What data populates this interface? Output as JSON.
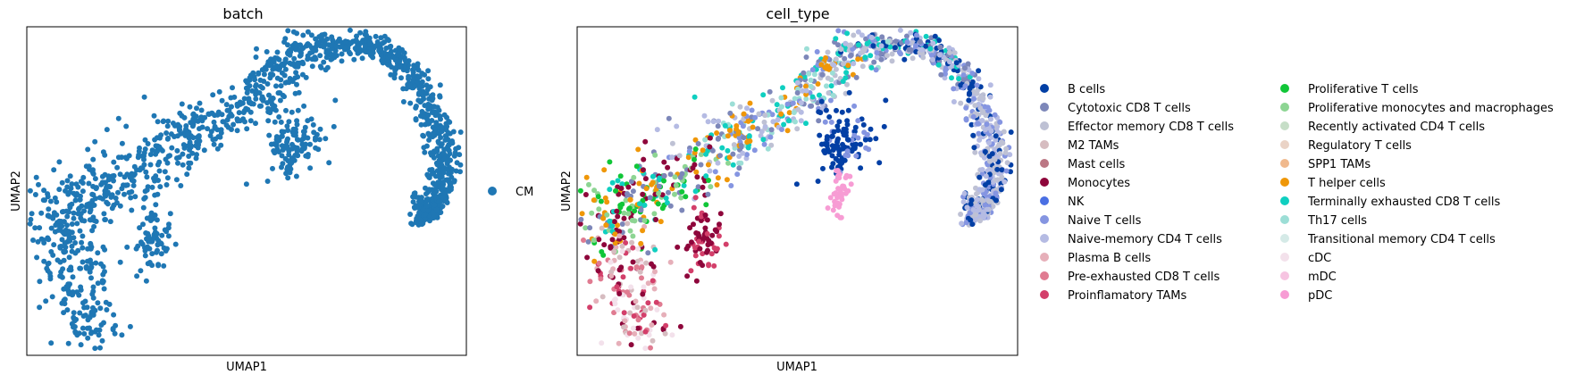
{
  "chart_data": [
    {
      "type": "scatter",
      "title": "batch",
      "xlabel": "UMAP1",
      "ylabel": "UMAP2",
      "grid": false,
      "ticks": false,
      "legend_placement": "right",
      "legend": [
        {
          "name": "CM",
          "color": "#1f77b4"
        }
      ],
      "series": [
        {
          "name": "CM",
          "color": "#1f77b4",
          "points": []
        }
      ]
    },
    {
      "type": "scatter",
      "title": "cell_type",
      "xlabel": "UMAP1",
      "ylabel": "UMAP2",
      "grid": false,
      "ticks": false,
      "legend_placement": "right, two columns",
      "legend": [
        {
          "name": "B cells",
          "color": "#023fa5"
        },
        {
          "name": "Cytotoxic CD8 T cells",
          "color": "#7d87b9"
        },
        {
          "name": "Effector memory CD8 T cells",
          "color": "#bec1d4"
        },
        {
          "name": "M2 TAMs",
          "color": "#d6bcc0"
        },
        {
          "name": "Mast cells",
          "color": "#bb7784"
        },
        {
          "name": "Monocytes",
          "color": "#8e063b"
        },
        {
          "name": "NK",
          "color": "#4a6fe3"
        },
        {
          "name": "Naive T cells",
          "color": "#8595e1"
        },
        {
          "name": "Naive-memory CD4 T cells",
          "color": "#b5bbe3"
        },
        {
          "name": "Plasma B cells",
          "color": "#e6afb9"
        },
        {
          "name": "Pre-exhausted CD8 T cells",
          "color": "#e07b91"
        },
        {
          "name": "Proinflamatory TAMs",
          "color": "#d33f6a"
        },
        {
          "name": "Proliferative T cells",
          "color": "#11c638"
        },
        {
          "name": "Proliferative monocytes and macrophages",
          "color": "#8dd593"
        },
        {
          "name": "Recently activated CD4 T cells",
          "color": "#c6dec7"
        },
        {
          "name": "Regulatory T cells",
          "color": "#ead3c6"
        },
        {
          "name": "SPP1 TAMs",
          "color": "#f0b98d"
        },
        {
          "name": "T helper cells",
          "color": "#ef9708"
        },
        {
          "name": "Terminally exhausted CD8 T cells",
          "color": "#0fcfc0"
        },
        {
          "name": "Th17 cells",
          "color": "#9cded6"
        },
        {
          "name": "Transitional memory CD4 T cells",
          "color": "#d5eae7"
        },
        {
          "name": "cDC",
          "color": "#f3e1eb"
        },
        {
          "name": "mDC",
          "color": "#f6c4e1"
        },
        {
          "name": "pDC",
          "color": "#f79cd4"
        }
      ]
    }
  ]
}
